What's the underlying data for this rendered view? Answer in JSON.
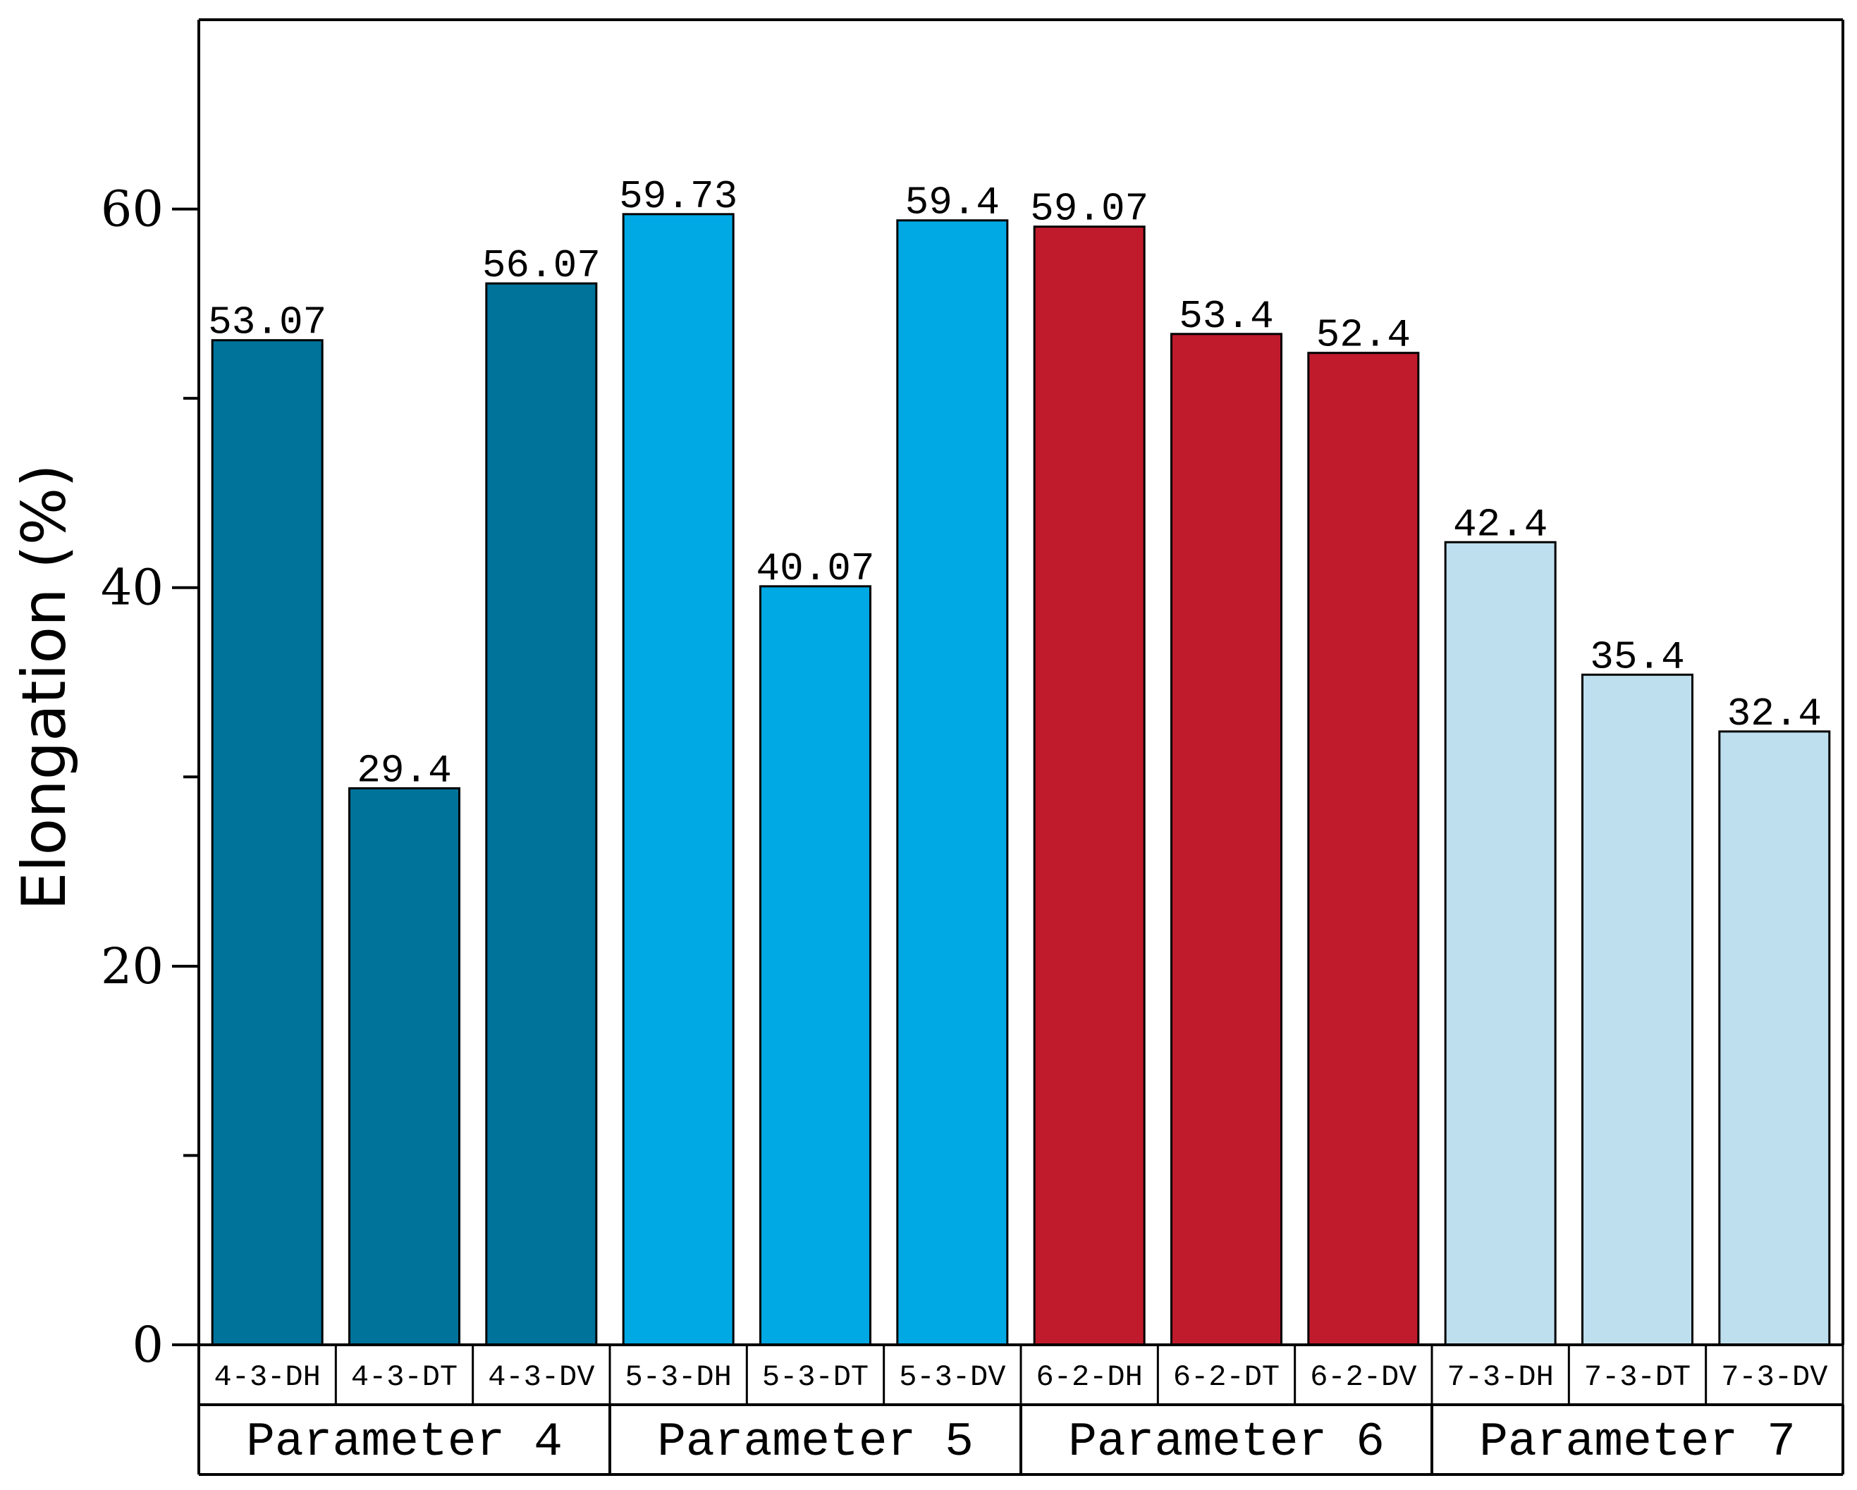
{
  "chart_data": {
    "type": "bar",
    "title": "",
    "xlabel": "",
    "ylabel": "Elongation (%)",
    "ylim": [
      0,
      70
    ],
    "yticks": [
      0,
      20,
      40,
      60
    ],
    "ytick_labels": [
      "0",
      "20",
      "40",
      "60"
    ],
    "grid": false,
    "categories": [
      "4-3-DH",
      "4-3-DT",
      "4-3-DV",
      "5-3-DH",
      "5-3-DT",
      "5-3-DV",
      "6-2-DH",
      "6-2-DT",
      "6-2-DV",
      "7-3-DH",
      "7-3-DT",
      "7-3-DV"
    ],
    "values": [
      53.07,
      29.4,
      56.07,
      59.73,
      40.07,
      59.4,
      59.07,
      53.4,
      52.4,
      42.4,
      35.4,
      32.4
    ],
    "value_labels": [
      "53.07",
      "29.4",
      "56.07",
      "59.73",
      "40.07",
      "59.4",
      "59.07",
      "53.4",
      "52.4",
      "42.4",
      "35.4",
      "32.4"
    ],
    "groups": [
      {
        "name": "Parameter 4",
        "color": "#00739A",
        "categories": [
          "4-3-DH",
          "4-3-DT",
          "4-3-DV"
        ]
      },
      {
        "name": "Parameter 5",
        "color": "#00A9E4",
        "categories": [
          "5-3-DH",
          "5-3-DT",
          "5-3-DV"
        ]
      },
      {
        "name": "Parameter 6",
        "color": "#C01B2C",
        "categories": [
          "6-2-DH",
          "6-2-DT",
          "6-2-DV"
        ]
      },
      {
        "name": "Parameter 7",
        "color": "#BEDFEE",
        "categories": [
          "7-3-DH",
          "7-3-DT",
          "7-3-DV"
        ]
      }
    ]
  }
}
